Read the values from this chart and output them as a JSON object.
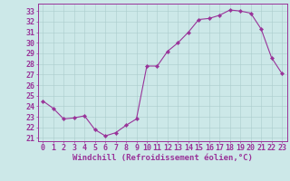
{
  "x": [
    0,
    1,
    2,
    3,
    4,
    5,
    6,
    7,
    8,
    9,
    10,
    11,
    12,
    13,
    14,
    15,
    16,
    17,
    18,
    19,
    20,
    21,
    22,
    23
  ],
  "y": [
    24.5,
    23.8,
    22.8,
    22.9,
    23.1,
    21.8,
    21.2,
    21.5,
    22.2,
    22.8,
    27.8,
    27.8,
    29.2,
    30.0,
    31.0,
    32.2,
    32.3,
    32.6,
    33.1,
    33.0,
    32.8,
    31.3,
    28.6,
    27.1
  ],
  "line_color": "#993399",
  "marker": "D",
  "marker_size": 2.2,
  "bg_color": "#cce8e8",
  "grid_color": "#aacccc",
  "xlabel": "Windchill (Refroidissement éolien,°C)",
  "ylim": [
    20.7,
    33.7
  ],
  "xlim": [
    -0.5,
    23.5
  ],
  "yticks": [
    21,
    22,
    23,
    24,
    25,
    26,
    27,
    28,
    29,
    30,
    31,
    32,
    33
  ],
  "xticks": [
    0,
    1,
    2,
    3,
    4,
    5,
    6,
    7,
    8,
    9,
    10,
    11,
    12,
    13,
    14,
    15,
    16,
    17,
    18,
    19,
    20,
    21,
    22,
    23
  ],
  "tick_color": "#993399",
  "spine_color": "#993399",
  "font_size": 6,
  "xlabel_fontsize": 6.5,
  "linewidth": 0.8
}
